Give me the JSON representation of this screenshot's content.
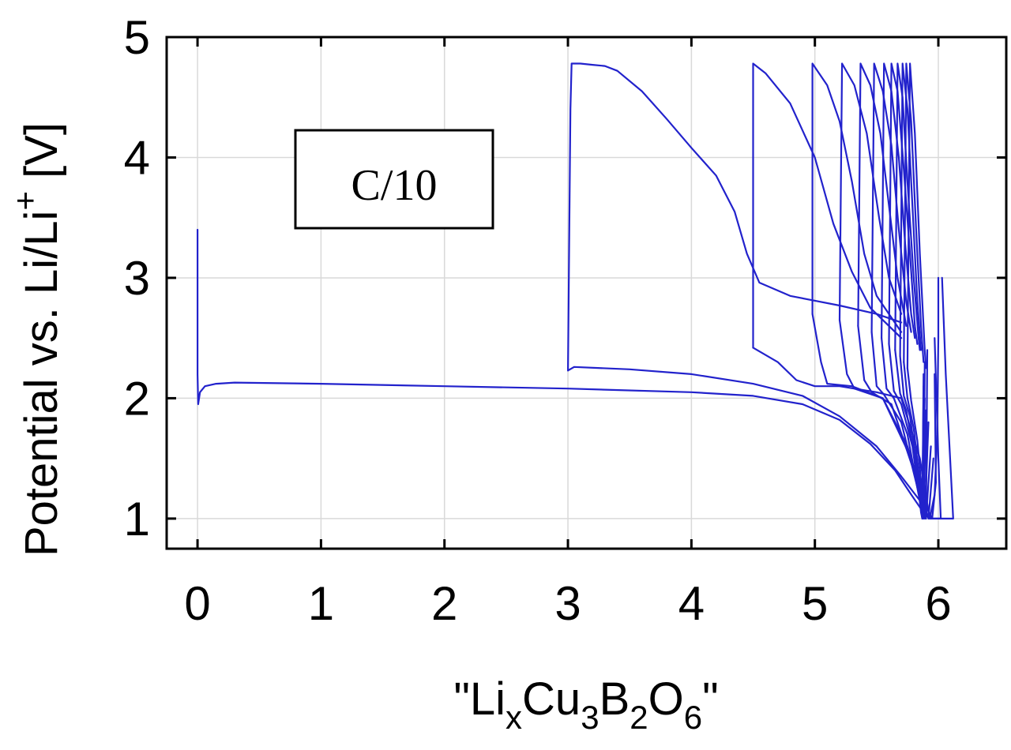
{
  "chart_data": {
    "type": "line",
    "x_ticks": [
      "0",
      "1",
      "2",
      "3",
      "4",
      "5",
      "6"
    ],
    "y_ticks": [
      "1",
      "2",
      "3",
      "4",
      "5"
    ],
    "xlim": [
      -0.25,
      6.55
    ],
    "ylim": [
      0.75,
      5
    ],
    "grid": true,
    "colors": {
      "series": "#2222cc"
    },
    "xlabel": {
      "parts": [
        {
          "text": "\"Li",
          "style": "normal"
        },
        {
          "text": "x",
          "style": "sub"
        },
        {
          "text": "Cu",
          "style": "normal"
        },
        {
          "text": "3",
          "style": "sub"
        },
        {
          "text": "B",
          "style": "normal"
        },
        {
          "text": "2",
          "style": "sub"
        },
        {
          "text": "O",
          "style": "normal"
        },
        {
          "text": "6",
          "style": "sub"
        },
        {
          "text": "\"",
          "style": "normal"
        }
      ]
    },
    "ylabel": {
      "parts": [
        {
          "text": "Potential vs. Li/Li",
          "style": "normal"
        },
        {
          "text": "+",
          "style": "super"
        },
        {
          "text": " [V]",
          "style": "normal"
        }
      ]
    },
    "annotation": "C/10",
    "series": [
      {
        "points": [
          [
            0.0,
            3.4
          ],
          [
            0.0,
            2.2
          ],
          [
            0.005,
            1.95
          ],
          [
            0.02,
            2.05
          ],
          [
            0.06,
            2.1
          ],
          [
            0.15,
            2.12
          ],
          [
            0.3,
            2.13
          ],
          [
            1.0,
            2.12
          ],
          [
            2.0,
            2.1
          ],
          [
            3.0,
            2.08
          ],
          [
            4.0,
            2.05
          ],
          [
            4.5,
            2.02
          ],
          [
            4.9,
            1.95
          ],
          [
            5.2,
            1.82
          ],
          [
            5.45,
            1.62
          ],
          [
            5.65,
            1.4
          ],
          [
            5.78,
            1.2
          ],
          [
            5.88,
            1.05
          ],
          [
            5.93,
            1.0
          ],
          [
            5.97,
            1.2
          ],
          [
            5.99,
            1.7
          ],
          [
            6.0,
            2.5
          ],
          [
            6.0,
            3.0
          ]
        ]
      },
      {
        "points": [
          [
            3.0,
            2.23
          ],
          [
            3.02,
            4.4
          ],
          [
            3.03,
            4.78
          ],
          [
            3.1,
            4.78
          ],
          [
            3.2,
            4.77
          ],
          [
            3.3,
            4.76
          ],
          [
            3.4,
            4.72
          ],
          [
            3.6,
            4.55
          ],
          [
            3.8,
            4.32
          ],
          [
            4.0,
            4.08
          ],
          [
            4.2,
            3.85
          ],
          [
            4.35,
            3.55
          ],
          [
            4.45,
            3.2
          ],
          [
            4.55,
            2.96
          ],
          [
            4.8,
            2.85
          ],
          [
            5.2,
            2.77
          ],
          [
            5.5,
            2.7
          ],
          [
            5.7,
            2.63
          ]
        ]
      },
      {
        "points": [
          [
            3.0,
            2.23
          ],
          [
            3.05,
            2.26
          ],
          [
            3.5,
            2.24
          ],
          [
            4.0,
            2.2
          ],
          [
            4.5,
            2.12
          ],
          [
            4.9,
            2.02
          ],
          [
            5.2,
            1.85
          ],
          [
            5.5,
            1.6
          ],
          [
            5.7,
            1.35
          ],
          [
            5.85,
            1.15
          ],
          [
            5.93,
            1.0
          ],
          [
            6.05,
            1.0
          ],
          [
            6.12,
            1.0
          ],
          [
            6.1,
            1.4
          ],
          [
            6.06,
            2.2
          ],
          [
            6.03,
            3.0
          ]
        ]
      },
      {
        "points": [
          [
            4.5,
            2.42
          ],
          [
            4.5,
            3.5
          ],
          [
            4.5,
            4.78
          ],
          [
            4.6,
            4.7
          ],
          [
            4.8,
            4.45
          ],
          [
            5.0,
            4.0
          ],
          [
            5.15,
            3.45
          ],
          [
            5.3,
            3.05
          ],
          [
            5.45,
            2.75
          ],
          [
            5.6,
            2.6
          ],
          [
            5.7,
            2.5
          ]
        ]
      },
      {
        "points": [
          [
            4.5,
            2.42
          ],
          [
            4.7,
            2.3
          ],
          [
            4.85,
            2.15
          ],
          [
            5.0,
            2.1
          ],
          [
            5.2,
            2.1
          ],
          [
            5.5,
            2.05
          ],
          [
            5.7,
            2.0
          ],
          [
            5.85,
            1.5
          ],
          [
            5.93,
            1.0
          ],
          [
            6.02,
            1.0
          ],
          [
            6.0,
            1.5
          ],
          [
            5.97,
            2.5
          ]
        ]
      },
      {
        "points": [
          [
            4.98,
            2.7
          ],
          [
            4.98,
            4.78
          ],
          [
            5.1,
            4.6
          ],
          [
            5.2,
            4.3
          ],
          [
            5.3,
            3.8
          ],
          [
            5.4,
            3.2
          ],
          [
            5.5,
            2.85
          ],
          [
            5.6,
            2.7
          ],
          [
            5.7,
            2.55
          ]
        ]
      },
      {
        "points": [
          [
            4.98,
            2.7
          ],
          [
            5.05,
            2.3
          ],
          [
            5.1,
            2.12
          ],
          [
            5.3,
            2.1
          ],
          [
            5.55,
            2.0
          ],
          [
            5.75,
            1.6
          ],
          [
            5.9,
            1.1
          ],
          [
            5.95,
            1.0
          ],
          [
            5.98,
            1.3
          ],
          [
            5.97,
            2.2
          ]
        ]
      },
      {
        "points": [
          [
            5.2,
            2.65
          ],
          [
            5.22,
            4.78
          ],
          [
            5.32,
            4.6
          ],
          [
            5.42,
            4.2
          ],
          [
            5.52,
            3.5
          ],
          [
            5.6,
            3.0
          ],
          [
            5.7,
            2.7
          ]
        ]
      },
      {
        "points": [
          [
            5.2,
            2.65
          ],
          [
            5.26,
            2.2
          ],
          [
            5.32,
            2.08
          ],
          [
            5.55,
            2.0
          ],
          [
            5.78,
            1.5
          ],
          [
            5.92,
            1.0
          ],
          [
            5.96,
            1.5
          ]
        ]
      },
      {
        "points": [
          [
            5.35,
            2.6
          ],
          [
            5.37,
            4.78
          ],
          [
            5.45,
            4.6
          ],
          [
            5.53,
            4.2
          ],
          [
            5.6,
            3.6
          ],
          [
            5.67,
            3.0
          ],
          [
            5.74,
            2.6
          ]
        ]
      },
      {
        "points": [
          [
            5.35,
            2.6
          ],
          [
            5.4,
            2.15
          ],
          [
            5.46,
            2.05
          ],
          [
            5.62,
            1.95
          ],
          [
            5.8,
            1.4
          ],
          [
            5.9,
            1.0
          ],
          [
            5.94,
            1.6
          ]
        ]
      },
      {
        "points": [
          [
            5.46,
            2.55
          ],
          [
            5.48,
            4.78
          ],
          [
            5.55,
            4.55
          ],
          [
            5.62,
            4.1
          ],
          [
            5.68,
            3.4
          ],
          [
            5.74,
            2.8
          ],
          [
            5.78,
            2.55
          ]
        ]
      },
      {
        "points": [
          [
            5.46,
            2.55
          ],
          [
            5.5,
            2.1
          ],
          [
            5.56,
            2.03
          ],
          [
            5.7,
            1.8
          ],
          [
            5.82,
            1.3
          ],
          [
            5.89,
            1.0
          ],
          [
            5.92,
            1.8
          ]
        ]
      },
      {
        "points": [
          [
            5.54,
            2.5
          ],
          [
            5.56,
            4.78
          ],
          [
            5.62,
            4.55
          ],
          [
            5.68,
            4.0
          ],
          [
            5.73,
            3.3
          ],
          [
            5.78,
            2.7
          ],
          [
            5.81,
            2.5
          ]
        ]
      },
      {
        "points": [
          [
            5.54,
            2.5
          ],
          [
            5.58,
            2.08
          ],
          [
            5.64,
            2.0
          ],
          [
            5.75,
            1.7
          ],
          [
            5.84,
            1.2
          ],
          [
            5.88,
            1.0
          ],
          [
            5.9,
            1.9
          ]
        ]
      },
      {
        "points": [
          [
            5.6,
            2.45
          ],
          [
            5.62,
            4.78
          ],
          [
            5.67,
            4.55
          ],
          [
            5.72,
            3.9
          ],
          [
            5.77,
            3.2
          ],
          [
            5.81,
            2.6
          ],
          [
            5.83,
            2.45
          ]
        ]
      },
      {
        "points": [
          [
            5.6,
            2.45
          ],
          [
            5.64,
            2.06
          ],
          [
            5.7,
            1.95
          ],
          [
            5.79,
            1.6
          ],
          [
            5.85,
            1.15
          ],
          [
            5.87,
            1.0
          ],
          [
            5.89,
            2.0
          ]
        ]
      },
      {
        "points": [
          [
            5.65,
            2.4
          ],
          [
            5.67,
            4.78
          ],
          [
            5.71,
            4.5
          ],
          [
            5.75,
            3.8
          ],
          [
            5.8,
            3.0
          ],
          [
            5.84,
            2.5
          ],
          [
            5.85,
            2.4
          ]
        ]
      },
      {
        "points": [
          [
            5.65,
            2.4
          ],
          [
            5.69,
            2.04
          ],
          [
            5.74,
            1.9
          ],
          [
            5.81,
            1.5
          ],
          [
            5.86,
            1.05
          ],
          [
            5.87,
            1.0
          ],
          [
            5.88,
            2.1
          ]
        ]
      },
      {
        "points": [
          [
            5.69,
            2.35
          ],
          [
            5.71,
            4.78
          ],
          [
            5.75,
            4.4
          ],
          [
            5.79,
            3.6
          ],
          [
            5.83,
            2.8
          ],
          [
            5.86,
            2.4
          ]
        ]
      },
      {
        "points": [
          [
            5.69,
            2.35
          ],
          [
            5.72,
            2.02
          ],
          [
            5.77,
            1.85
          ],
          [
            5.83,
            1.4
          ],
          [
            5.87,
            1.0
          ],
          [
            5.88,
            2.2
          ]
        ]
      },
      {
        "points": [
          [
            5.72,
            2.3
          ],
          [
            5.74,
            4.78
          ],
          [
            5.78,
            4.3
          ],
          [
            5.82,
            3.4
          ],
          [
            5.86,
            2.6
          ],
          [
            5.88,
            2.3
          ]
        ]
      },
      {
        "points": [
          [
            5.72,
            2.3
          ],
          [
            5.75,
            2.0
          ],
          [
            5.8,
            1.75
          ],
          [
            5.85,
            1.3
          ],
          [
            5.88,
            1.0
          ],
          [
            5.89,
            2.3
          ]
        ]
      },
      {
        "points": [
          [
            5.75,
            2.25
          ],
          [
            5.77,
            4.78
          ],
          [
            5.81,
            4.2
          ],
          [
            5.85,
            3.2
          ],
          [
            5.89,
            2.4
          ],
          [
            5.9,
            2.25
          ]
        ]
      },
      {
        "points": [
          [
            5.75,
            2.25
          ],
          [
            5.78,
            1.98
          ],
          [
            5.83,
            1.65
          ],
          [
            5.87,
            1.2
          ],
          [
            5.9,
            1.0
          ],
          [
            5.91,
            2.4
          ]
        ]
      }
    ]
  }
}
